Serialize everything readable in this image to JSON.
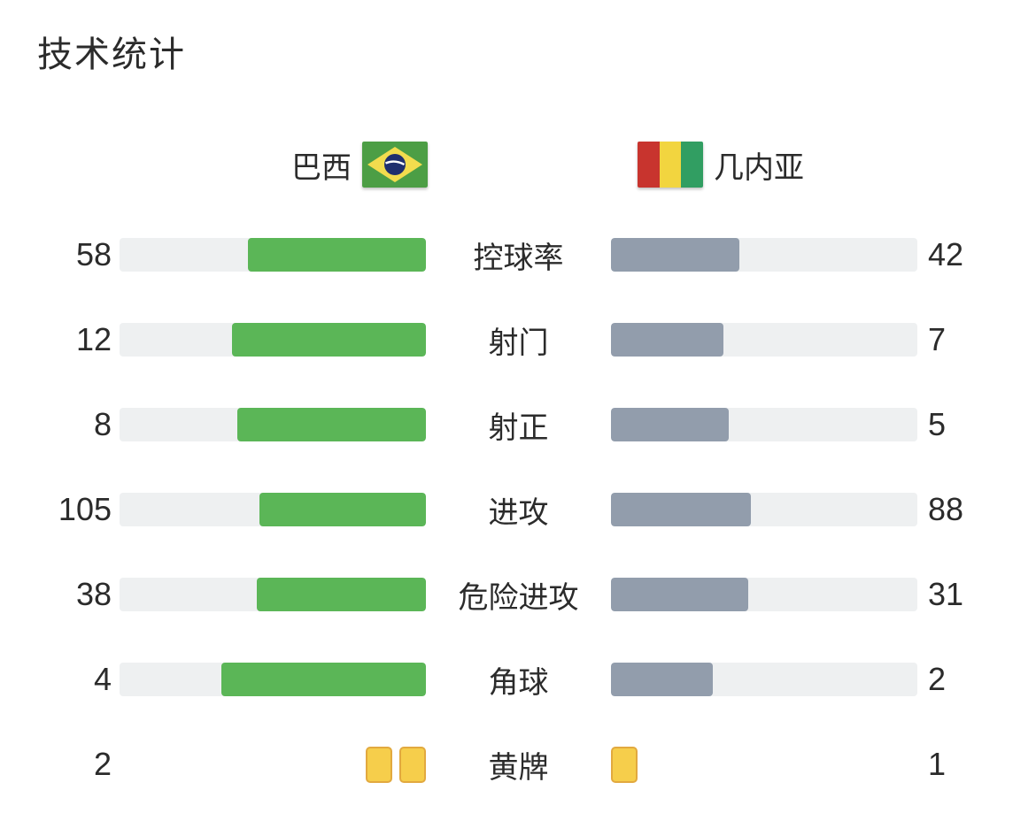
{
  "page": {
    "title": "技术统计",
    "background": "#ffffff"
  },
  "teams": {
    "home": {
      "name": "巴西",
      "flag_icon": "brazil-flag",
      "bar_color": "#5bb657"
    },
    "away": {
      "name": "几内亚",
      "flag_icon": "guinea-flag",
      "bar_color": "#929dac"
    }
  },
  "colors": {
    "home_bar": "#5bb657",
    "away_bar": "#929dac",
    "bar_track": "#eef0f1",
    "yellow_card_fill": "#f6ce4b",
    "yellow_card_border": "#e2a93f",
    "brazil_flag_green": "#4c9e45",
    "brazil_flag_yellow": "#f2dc4e",
    "brazil_flag_blue": "#1f2f6e",
    "guinea_flag_red": "#c8342e",
    "guinea_flag_yellow": "#f2d53f",
    "guinea_flag_green": "#319e62",
    "text": "#2b2b2b"
  },
  "stats": {
    "rows": [
      {
        "label": "控球率",
        "home": 58,
        "away": 42,
        "kind": "bar"
      },
      {
        "label": "射门",
        "home": 12,
        "away": 7,
        "kind": "bar"
      },
      {
        "label": "射正",
        "home": 8,
        "away": 5,
        "kind": "bar"
      },
      {
        "label": "进攻",
        "home": 105,
        "away": 88,
        "kind": "bar"
      },
      {
        "label": "危险进攻",
        "home": 38,
        "away": 31,
        "kind": "bar"
      },
      {
        "label": "角球",
        "home": 4,
        "away": 2,
        "kind": "bar"
      },
      {
        "label": "黄牌",
        "home": 2,
        "away": 1,
        "kind": "cards"
      }
    ]
  },
  "chart_data": {
    "type": "bar",
    "title": "技术统计",
    "orientation": "horizontal-paired",
    "categories": [
      "控球率",
      "射门",
      "射正",
      "进攻",
      "危险进攻",
      "角球",
      "黄牌"
    ],
    "series": [
      {
        "name": "巴西",
        "values": [
          58,
          12,
          8,
          105,
          38,
          4,
          2
        ],
        "color": "#5bb657"
      },
      {
        "name": "几内亚",
        "values": [
          42,
          7,
          5,
          88,
          31,
          2,
          1
        ],
        "color": "#929dac"
      }
    ],
    "legend_position": "top",
    "grid": false,
    "value_scaling": "each bar fill width = value / (home + away) of full track",
    "notes": "黄牌 (yellow cards) row rendered as yellow card icons instead of bars"
  }
}
